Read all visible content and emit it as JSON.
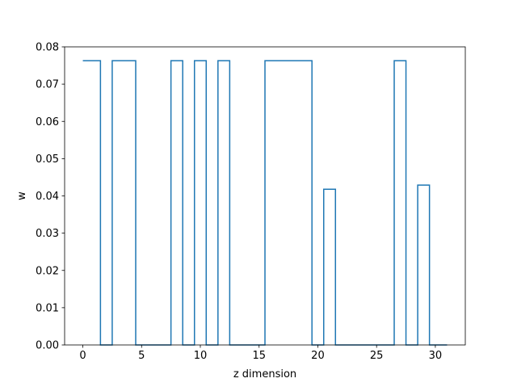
{
  "chart_data": {
    "type": "line",
    "drawstyle": "steps-mid",
    "xlabel": "z dimension",
    "ylabel": "w",
    "xlim": [
      -1.55,
      32.55
    ],
    "ylim": [
      0,
      0.08
    ],
    "xticks": [
      0,
      5,
      10,
      15,
      20,
      25,
      30
    ],
    "xtick_labels": [
      "0",
      "5",
      "10",
      "15",
      "20",
      "25",
      "30"
    ],
    "yticks": [
      0,
      0.01,
      0.02,
      0.03,
      0.04,
      0.05,
      0.06,
      0.07,
      0.08
    ],
    "ytick_labels": [
      "0.00",
      "0.01",
      "0.02",
      "0.03",
      "0.04",
      "0.05",
      "0.06",
      "0.07",
      "0.08"
    ],
    "grid": false,
    "series": [
      {
        "color": "#1f77b4",
        "x": [
          0,
          1,
          2,
          3,
          4,
          5,
          6,
          7,
          8,
          9,
          10,
          11,
          12,
          13,
          14,
          15,
          16,
          17,
          18,
          19,
          20,
          21,
          22,
          23,
          24,
          25,
          26,
          27,
          28,
          29,
          30,
          31
        ],
        "y": [
          0.0763,
          0.0763,
          0,
          0.0763,
          0.0763,
          0,
          0,
          0,
          0.0763,
          0,
          0.0763,
          0,
          0.0763,
          0,
          0,
          0,
          0.0763,
          0.0763,
          0.0763,
          0.0763,
          0,
          0.0418,
          0,
          0,
          0,
          0,
          0,
          0.0763,
          0,
          0.0429,
          0,
          0
        ]
      }
    ]
  }
}
